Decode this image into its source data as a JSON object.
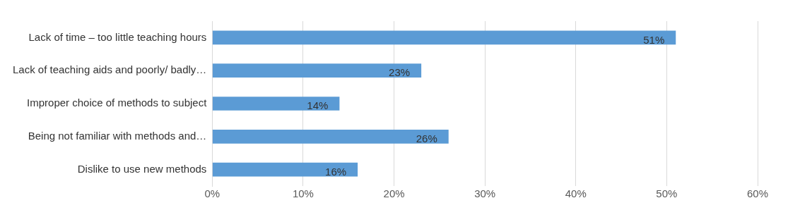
{
  "chart_data": {
    "type": "bar",
    "orientation": "horizontal",
    "categories": [
      "Lack of time – too little teaching hours",
      "Lack of teaching aids and poorly/ badly…",
      "Improper choice of methods to subject",
      "Being not familiar with methods and…",
      "Dislike to use new methods"
    ],
    "values": [
      51,
      23,
      14,
      26,
      16
    ],
    "value_labels": [
      "51%",
      "23%",
      "14%",
      "26%",
      "16%"
    ],
    "color": "#5b9bd5",
    "xlim": [
      0,
      60
    ],
    "xticks": [
      {
        "value": 0,
        "label": "0%"
      },
      {
        "value": 10,
        "label": "10%"
      },
      {
        "value": 20,
        "label": "20%"
      },
      {
        "value": 30,
        "label": "30%"
      },
      {
        "value": 40,
        "label": "40%"
      },
      {
        "value": 50,
        "label": "50%"
      },
      {
        "value": 60,
        "label": "60%"
      }
    ],
    "grid": "x",
    "legend": false
  }
}
